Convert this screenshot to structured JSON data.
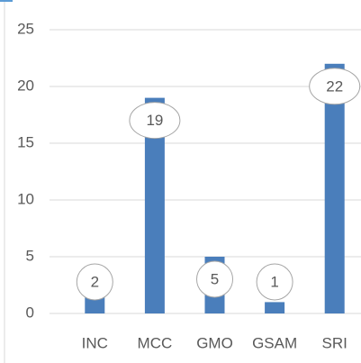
{
  "chart_data": {
    "type": "bar",
    "categories": [
      "INC",
      "MCC",
      "GMO",
      "GSAM",
      "SRI"
    ],
    "values": [
      2,
      19,
      5,
      1,
      22
    ],
    "color": "#4a7ebb",
    "ylim": [
      0,
      25
    ],
    "yticks": [
      0,
      5,
      10,
      15,
      20,
      25
    ],
    "grid": true
  }
}
